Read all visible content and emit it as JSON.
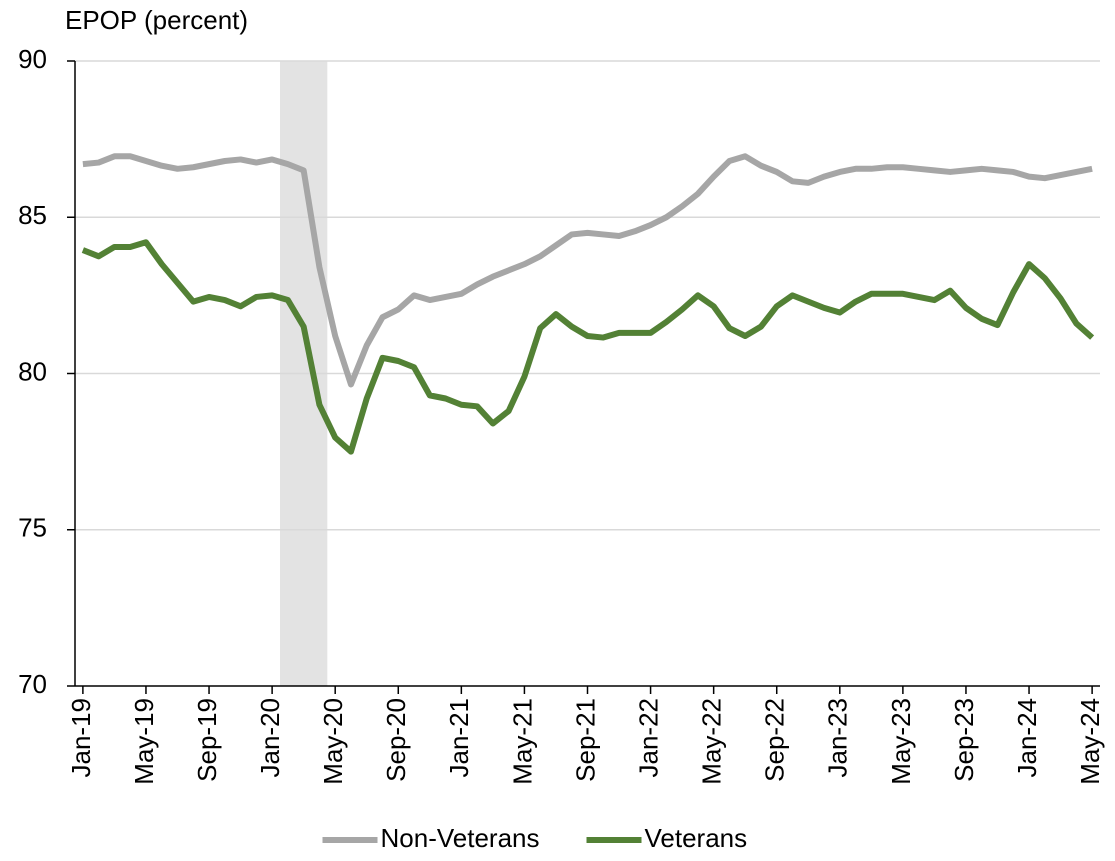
{
  "chart_data": {
    "type": "line",
    "y_label": "EPOP (percent)",
    "categories": [
      "Jan-19",
      null,
      null,
      null,
      "May-19",
      null,
      null,
      null,
      "Sep-19",
      null,
      null,
      null,
      "Jan-20",
      null,
      null,
      null,
      "May-20",
      null,
      null,
      null,
      "Sep-20",
      null,
      null,
      null,
      "Jan-21",
      null,
      null,
      null,
      "May-21",
      null,
      null,
      null,
      "Sep-21",
      null,
      null,
      null,
      "Jan-22",
      null,
      null,
      null,
      "May-22",
      null,
      null,
      null,
      "Sep-22",
      null,
      null,
      null,
      "Jan-23",
      null,
      null,
      null,
      "May-23",
      null,
      null,
      null,
      "Sep-23",
      null,
      null,
      null,
      "Jan-24",
      null,
      null,
      null,
      "May-24"
    ],
    "series": [
      {
        "name": "Non-Veterans",
        "color": "#a6a6a6",
        "values": [
          86.7,
          86.75,
          86.95,
          86.95,
          86.8,
          86.65,
          86.55,
          86.6,
          86.7,
          86.8,
          86.85,
          86.75,
          86.85,
          86.7,
          86.5,
          83.4,
          81.2,
          79.65,
          80.9,
          81.8,
          82.05,
          82.5,
          82.35,
          82.45,
          82.55,
          82.85,
          83.1,
          83.3,
          83.5,
          83.75,
          84.1,
          84.45,
          84.5,
          84.45,
          84.4,
          84.55,
          84.75,
          85.0,
          85.35,
          85.75,
          86.3,
          86.8,
          86.95,
          86.65,
          86.45,
          86.15,
          86.1,
          86.3,
          86.45,
          86.55,
          86.55,
          86.6,
          86.6,
          86.55,
          86.5,
          86.45,
          86.5,
          86.55,
          86.5,
          86.45,
          86.3,
          86.25,
          86.35,
          86.45,
          86.55
        ]
      },
      {
        "name": "Veterans",
        "color": "#538135",
        "values": [
          83.95,
          83.75,
          84.05,
          84.05,
          84.2,
          83.5,
          82.9,
          82.3,
          82.45,
          82.35,
          82.15,
          82.45,
          82.5,
          82.35,
          81.5,
          79.0,
          77.95,
          77.5,
          79.2,
          80.5,
          80.4,
          80.2,
          79.3,
          79.2,
          79.0,
          78.95,
          78.4,
          78.8,
          79.9,
          81.45,
          81.9,
          81.5,
          81.2,
          81.15,
          81.3,
          81.3,
          81.3,
          81.65,
          82.05,
          82.5,
          82.15,
          81.45,
          81.2,
          81.5,
          82.15,
          82.5,
          82.3,
          82.1,
          81.95,
          82.3,
          82.55,
          82.55,
          82.55,
          82.45,
          82.35,
          82.65,
          82.1,
          81.75,
          81.55,
          82.6,
          83.5,
          83.05,
          82.4,
          81.6,
          81.15
        ]
      }
    ],
    "ylim": [
      70,
      90
    ],
    "yticks": [
      70,
      75,
      80,
      85,
      90
    ],
    "grid": true,
    "legend": "bottom"
  }
}
